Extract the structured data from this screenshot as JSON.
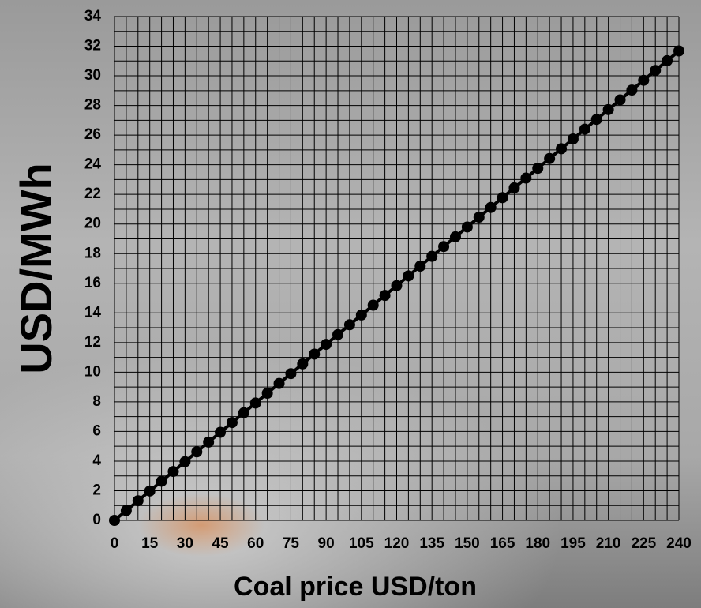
{
  "chart_data": {
    "type": "line",
    "x_label": "Coal price USD/ton",
    "y_label": "USD/MWh",
    "x": [
      0,
      5,
      10,
      15,
      20,
      25,
      30,
      35,
      40,
      45,
      50,
      55,
      60,
      65,
      70,
      75,
      80,
      85,
      90,
      95,
      100,
      105,
      110,
      115,
      120,
      125,
      130,
      135,
      140,
      145,
      150,
      155,
      160,
      165,
      170,
      175,
      180,
      185,
      190,
      195,
      200,
      205,
      210,
      215,
      220,
      225,
      230,
      235,
      240
    ],
    "series": [
      {
        "color": "#000000",
        "values": [
          0,
          0.66,
          1.32,
          1.98,
          2.64,
          3.3,
          3.96,
          4.62,
          5.28,
          5.94,
          6.6,
          7.26,
          7.92,
          8.58,
          9.24,
          9.9,
          10.56,
          11.22,
          11.88,
          12.54,
          13.2,
          13.86,
          14.52,
          15.18,
          15.84,
          16.5,
          17.16,
          17.82,
          18.48,
          19.14,
          19.8,
          20.46,
          21.12,
          21.78,
          22.44,
          23.1,
          23.76,
          24.42,
          25.08,
          25.74,
          26.4,
          27.06,
          27.72,
          28.38,
          29.04,
          29.7,
          30.36,
          31.02,
          31.68
        ]
      }
    ],
    "xlim": [
      0,
      240
    ],
    "ylim": [
      0,
      34
    ],
    "xticks": [
      0,
      15,
      30,
      45,
      60,
      75,
      90,
      105,
      120,
      135,
      150,
      165,
      180,
      195,
      210,
      225,
      240
    ],
    "yticks": [
      0,
      2,
      4,
      6,
      8,
      10,
      12,
      14,
      16,
      18,
      20,
      22,
      24,
      26,
      28,
      30,
      32,
      34
    ],
    "grid": true
  }
}
